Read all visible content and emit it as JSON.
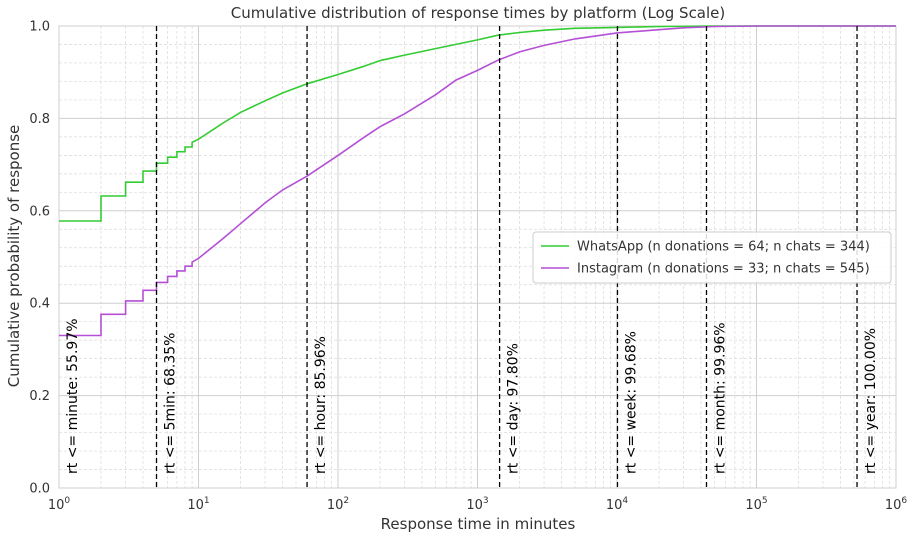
{
  "chart_data": {
    "type": "line",
    "title": "Cumulative distribution of response times by platform (Log Scale)",
    "xlabel": "Response time in minutes",
    "ylabel": "Cumulative probability of response",
    "xscale": "log",
    "xlim": [
      1,
      1000000
    ],
    "ylim": [
      0.0,
      1.0
    ],
    "x_ticks": [
      {
        "value": 1,
        "base": "10",
        "exp": "0"
      },
      {
        "value": 10,
        "base": "10",
        "exp": "1"
      },
      {
        "value": 100,
        "base": "10",
        "exp": "2"
      },
      {
        "value": 1000,
        "base": "10",
        "exp": "3"
      },
      {
        "value": 10000,
        "base": "10",
        "exp": "4"
      },
      {
        "value": 100000,
        "base": "10",
        "exp": "5"
      },
      {
        "value": 1000000,
        "base": "10",
        "exp": "6"
      }
    ],
    "y_ticks": [
      "0.0",
      "0.2",
      "0.4",
      "0.6",
      "0.8",
      "1.0"
    ],
    "grid": true,
    "legend_position": "center-right",
    "series": [
      {
        "name": "WhatsApp (n donations = 64; n chats = 344)",
        "color": "#33cc33",
        "x": [
          1,
          2,
          2,
          3,
          3,
          4,
          4,
          5,
          5,
          6,
          6,
          7,
          7,
          8,
          8,
          9,
          9,
          10,
          15,
          20,
          30,
          40,
          60,
          100,
          150,
          200,
          300,
          500,
          1000,
          1400,
          2000,
          3000,
          5000,
          10000,
          20000,
          50000,
          100000,
          1000000
        ],
        "y": [
          0.578,
          0.578,
          0.632,
          0.632,
          0.662,
          0.662,
          0.686,
          0.686,
          0.703,
          0.703,
          0.716,
          0.716,
          0.728,
          0.728,
          0.738,
          0.738,
          0.748,
          0.755,
          0.79,
          0.813,
          0.838,
          0.855,
          0.875,
          0.895,
          0.912,
          0.925,
          0.937,
          0.951,
          0.97,
          0.98,
          0.986,
          0.991,
          0.995,
          0.997,
          0.999,
          0.9997,
          1.0,
          1.0
        ]
      },
      {
        "name": "Instagram (n donations = 33; n chats = 545)",
        "color": "#b44fd6",
        "x": [
          1,
          2,
          2,
          3,
          3,
          4,
          4,
          5,
          5,
          6,
          6,
          7,
          7,
          8,
          8,
          9,
          9,
          10,
          15,
          20,
          30,
          40,
          60,
          100,
          150,
          200,
          300,
          500,
          700,
          1000,
          1400,
          2000,
          3000,
          5000,
          10000,
          20000,
          30000,
          50000,
          100000,
          1000000
        ],
        "y": [
          0.33,
          0.33,
          0.376,
          0.376,
          0.405,
          0.405,
          0.428,
          0.428,
          0.445,
          0.445,
          0.458,
          0.458,
          0.47,
          0.47,
          0.48,
          0.48,
          0.489,
          0.497,
          0.54,
          0.572,
          0.617,
          0.645,
          0.675,
          0.72,
          0.757,
          0.782,
          0.81,
          0.851,
          0.883,
          0.904,
          0.926,
          0.944,
          0.958,
          0.972,
          0.985,
          0.992,
          0.996,
          0.999,
          1.0,
          1.0
        ]
      }
    ],
    "vlines": [
      {
        "x": 5,
        "label": "rt <= 5min: 68.35%",
        "label_side": "right"
      },
      {
        "x": 60,
        "label": "rt <= hour: 85.96%",
        "label_side": "right"
      },
      {
        "x": 1440,
        "label": "rt <= day: 97.80%",
        "label_side": "right"
      },
      {
        "x": 10080,
        "label": "rt <= week: 99.68%",
        "label_side": "right"
      },
      {
        "x": 43800,
        "label": "rt <= month: 99.96%",
        "label_side": "right"
      },
      {
        "x": 525600,
        "label": "rt <= year: 100.00%",
        "label_side": "right"
      }
    ],
    "extra_labels": [
      {
        "x": 1,
        "label": "rt <= minute: 55.97%"
      }
    ]
  }
}
